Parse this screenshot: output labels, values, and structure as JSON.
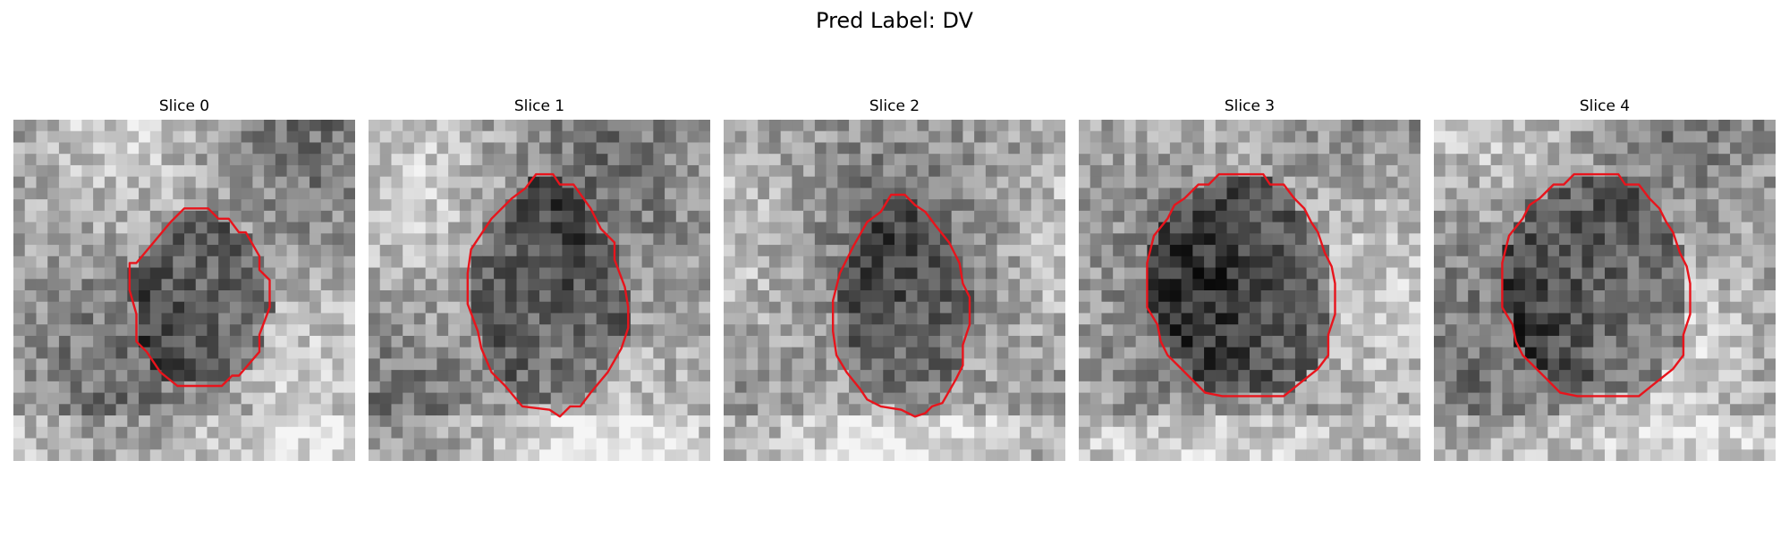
{
  "figure": {
    "title": "Pred Label: DV"
  },
  "colors": {
    "contour": "#e8141c",
    "background": "#ffffff"
  },
  "panels": [
    {
      "title": "Slice 0",
      "darkness": 0.78,
      "contour": [
        [
          0.36,
          0.42
        ],
        [
          0.46,
          0.3
        ],
        [
          0.5,
          0.26
        ],
        [
          0.57,
          0.26
        ],
        [
          0.6,
          0.29
        ],
        [
          0.63,
          0.29
        ],
        [
          0.66,
          0.33
        ],
        [
          0.68,
          0.33
        ],
        [
          0.72,
          0.4
        ],
        [
          0.72,
          0.44
        ],
        [
          0.75,
          0.47
        ],
        [
          0.75,
          0.55
        ],
        [
          0.72,
          0.63
        ],
        [
          0.72,
          0.68
        ],
        [
          0.66,
          0.75
        ],
        [
          0.64,
          0.75
        ],
        [
          0.61,
          0.78
        ],
        [
          0.48,
          0.78
        ],
        [
          0.43,
          0.74
        ],
        [
          0.39,
          0.68
        ],
        [
          0.36,
          0.65
        ],
        [
          0.36,
          0.57
        ],
        [
          0.34,
          0.5
        ],
        [
          0.34,
          0.42
        ]
      ]
    },
    {
      "title": "Slice 1",
      "darkness": 0.82,
      "contour": [
        [
          0.32,
          0.35
        ],
        [
          0.36,
          0.29
        ],
        [
          0.42,
          0.23
        ],
        [
          0.46,
          0.2
        ],
        [
          0.49,
          0.16
        ],
        [
          0.54,
          0.16
        ],
        [
          0.56,
          0.19
        ],
        [
          0.6,
          0.19
        ],
        [
          0.65,
          0.26
        ],
        [
          0.68,
          0.32
        ],
        [
          0.72,
          0.36
        ],
        [
          0.72,
          0.41
        ],
        [
          0.75,
          0.49
        ],
        [
          0.76,
          0.55
        ],
        [
          0.76,
          0.61
        ],
        [
          0.74,
          0.67
        ],
        [
          0.7,
          0.74
        ],
        [
          0.65,
          0.8
        ],
        [
          0.62,
          0.84
        ],
        [
          0.59,
          0.84
        ],
        [
          0.56,
          0.87
        ],
        [
          0.53,
          0.85
        ],
        [
          0.45,
          0.84
        ],
        [
          0.4,
          0.78
        ],
        [
          0.36,
          0.74
        ],
        [
          0.33,
          0.67
        ],
        [
          0.32,
          0.62
        ],
        [
          0.29,
          0.54
        ],
        [
          0.29,
          0.45
        ],
        [
          0.3,
          0.38
        ]
      ]
    },
    {
      "title": "Slice 2",
      "darkness": 0.6,
      "contour": [
        [
          0.38,
          0.37
        ],
        [
          0.42,
          0.3
        ],
        [
          0.46,
          0.27
        ],
        [
          0.49,
          0.22
        ],
        [
          0.53,
          0.22
        ],
        [
          0.56,
          0.25
        ],
        [
          0.59,
          0.27
        ],
        [
          0.62,
          0.31
        ],
        [
          0.66,
          0.36
        ],
        [
          0.69,
          0.42
        ],
        [
          0.7,
          0.48
        ],
        [
          0.72,
          0.52
        ],
        [
          0.72,
          0.6
        ],
        [
          0.7,
          0.66
        ],
        [
          0.7,
          0.72
        ],
        [
          0.68,
          0.76
        ],
        [
          0.64,
          0.83
        ],
        [
          0.61,
          0.84
        ],
        [
          0.59,
          0.86
        ],
        [
          0.56,
          0.87
        ],
        [
          0.52,
          0.85
        ],
        [
          0.46,
          0.84
        ],
        [
          0.42,
          0.82
        ],
        [
          0.4,
          0.79
        ],
        [
          0.36,
          0.74
        ],
        [
          0.33,
          0.69
        ],
        [
          0.32,
          0.62
        ],
        [
          0.32,
          0.53
        ],
        [
          0.34,
          0.45
        ]
      ]
    },
    {
      "title": "Slice 3",
      "darkness": 0.88,
      "contour": [
        [
          0.22,
          0.34
        ],
        [
          0.26,
          0.29
        ],
        [
          0.28,
          0.25
        ],
        [
          0.31,
          0.23
        ],
        [
          0.35,
          0.19
        ],
        [
          0.38,
          0.19
        ],
        [
          0.41,
          0.16
        ],
        [
          0.54,
          0.16
        ],
        [
          0.56,
          0.19
        ],
        [
          0.6,
          0.19
        ],
        [
          0.63,
          0.23
        ],
        [
          0.66,
          0.26
        ],
        [
          0.68,
          0.3
        ],
        [
          0.7,
          0.33
        ],
        [
          0.72,
          0.39
        ],
        [
          0.74,
          0.43
        ],
        [
          0.75,
          0.48
        ],
        [
          0.75,
          0.57
        ],
        [
          0.73,
          0.63
        ],
        [
          0.73,
          0.69
        ],
        [
          0.7,
          0.73
        ],
        [
          0.65,
          0.77
        ],
        [
          0.6,
          0.81
        ],
        [
          0.52,
          0.81
        ],
        [
          0.42,
          0.81
        ],
        [
          0.37,
          0.8
        ],
        [
          0.34,
          0.77
        ],
        [
          0.29,
          0.72
        ],
        [
          0.26,
          0.69
        ],
        [
          0.24,
          0.65
        ],
        [
          0.23,
          0.6
        ],
        [
          0.2,
          0.55
        ],
        [
          0.2,
          0.49
        ],
        [
          0.2,
          0.42
        ]
      ]
    },
    {
      "title": "Slice 4",
      "darkness": 0.88,
      "contour": [
        [
          0.22,
          0.34
        ],
        [
          0.26,
          0.29
        ],
        [
          0.28,
          0.25
        ],
        [
          0.31,
          0.23
        ],
        [
          0.35,
          0.19
        ],
        [
          0.38,
          0.19
        ],
        [
          0.41,
          0.16
        ],
        [
          0.54,
          0.16
        ],
        [
          0.56,
          0.19
        ],
        [
          0.6,
          0.19
        ],
        [
          0.63,
          0.23
        ],
        [
          0.66,
          0.26
        ],
        [
          0.68,
          0.3
        ],
        [
          0.7,
          0.33
        ],
        [
          0.72,
          0.39
        ],
        [
          0.74,
          0.43
        ],
        [
          0.75,
          0.48
        ],
        [
          0.75,
          0.57
        ],
        [
          0.73,
          0.63
        ],
        [
          0.73,
          0.69
        ],
        [
          0.7,
          0.73
        ],
        [
          0.65,
          0.77
        ],
        [
          0.6,
          0.81
        ],
        [
          0.52,
          0.81
        ],
        [
          0.42,
          0.81
        ],
        [
          0.37,
          0.8
        ],
        [
          0.34,
          0.77
        ],
        [
          0.29,
          0.72
        ],
        [
          0.26,
          0.69
        ],
        [
          0.24,
          0.65
        ],
        [
          0.23,
          0.6
        ],
        [
          0.2,
          0.55
        ],
        [
          0.2,
          0.49
        ],
        [
          0.2,
          0.42
        ]
      ]
    }
  ]
}
